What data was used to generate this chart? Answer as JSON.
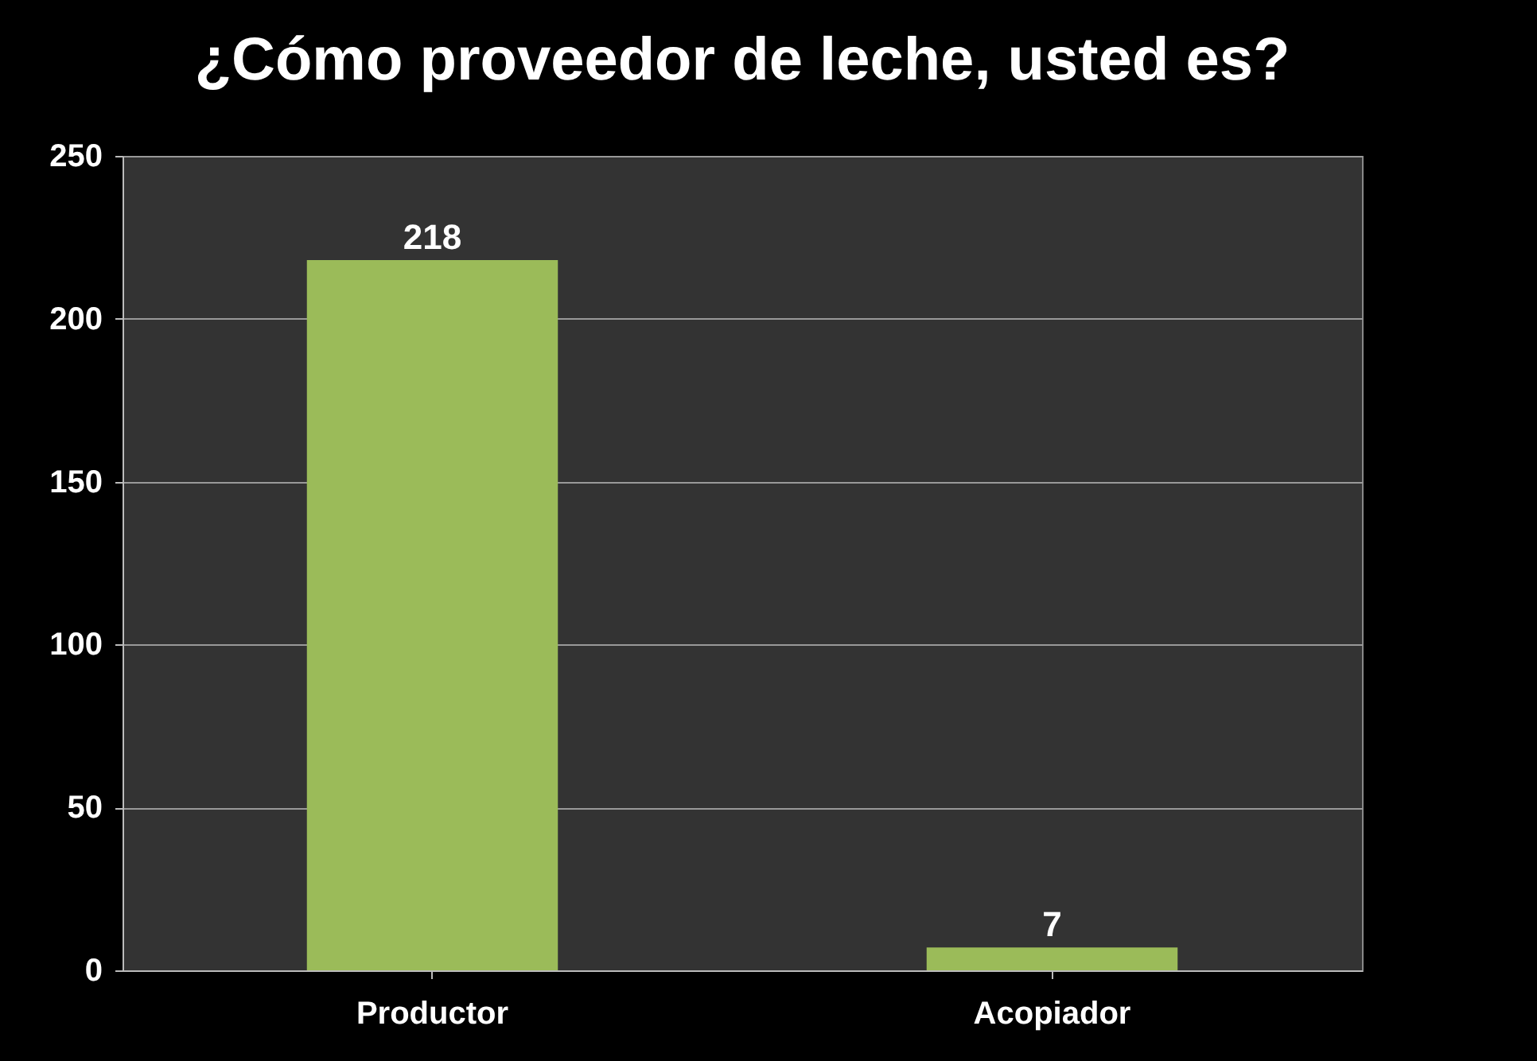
{
  "chart_data": {
    "type": "bar",
    "title": "¿Cómo proveedor de leche, usted es?",
    "categories": [
      "Productor",
      "Acopiador"
    ],
    "values": [
      218,
      7
    ],
    "color": "#9bbb59",
    "ylim": [
      0,
      250
    ],
    "yticks": [
      0,
      50,
      100,
      150,
      200,
      250
    ],
    "grid": "y",
    "data_labels": true
  }
}
